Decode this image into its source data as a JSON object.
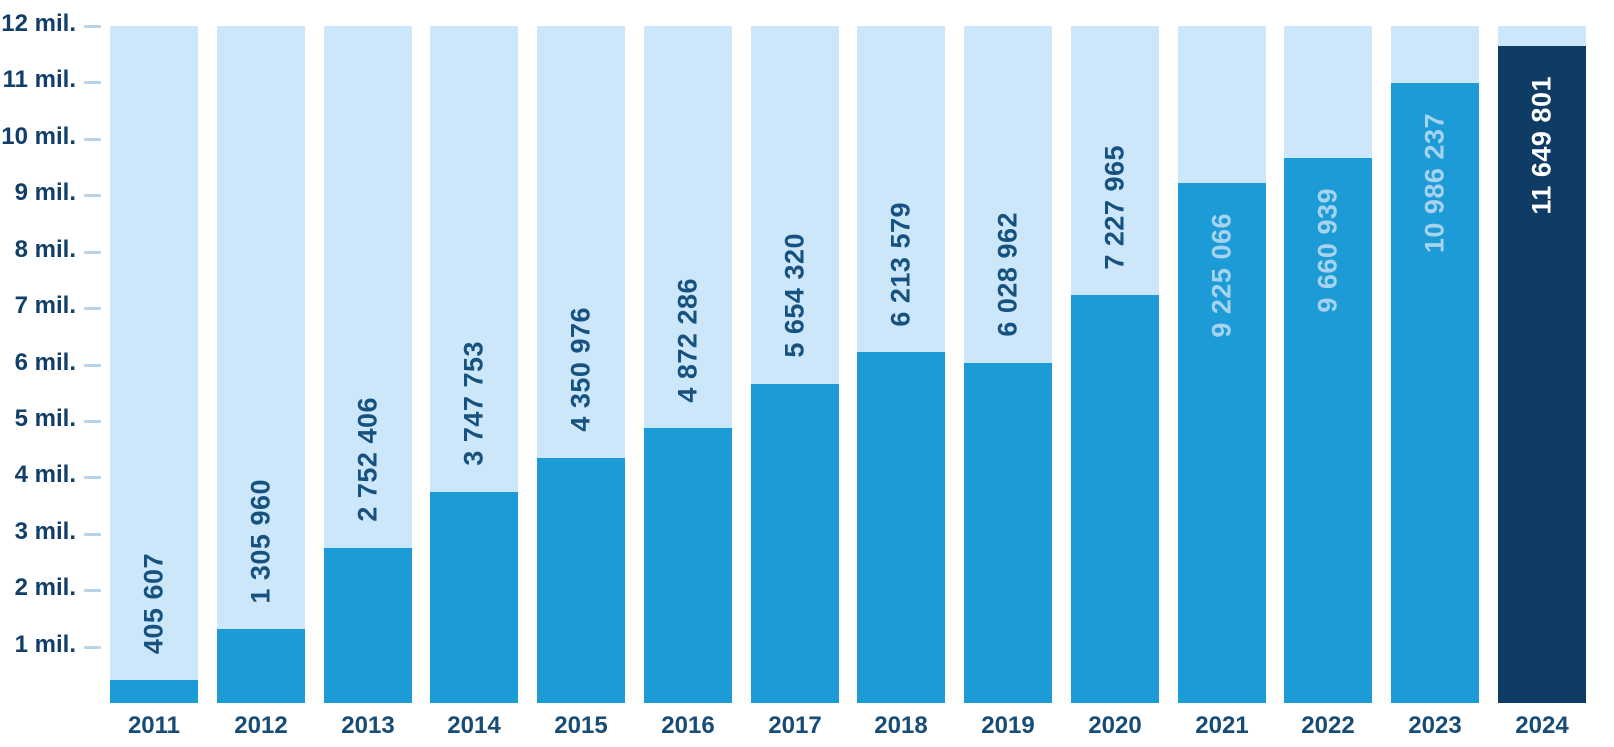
{
  "chart_data": {
    "type": "bar",
    "title": "",
    "xlabel": "",
    "ylabel": "",
    "ylim": [
      0,
      12000000
    ],
    "grid": false,
    "legend": null,
    "y_ticks": [
      "12 mil.",
      "11 mil.",
      "10 mil.",
      "9 mil.",
      "8 mil.",
      "7 mil.",
      "6 mil.",
      "5 mil.",
      "4 mil.",
      "3 mil.",
      "2 mil.",
      "1 mil."
    ],
    "categories": [
      "2011",
      "2012",
      "2013",
      "2014",
      "2015",
      "2016",
      "2017",
      "2018",
      "2019",
      "2020",
      "2021",
      "2022",
      "2023",
      "2024"
    ],
    "values": [
      405607,
      1305960,
      2752406,
      3747753,
      4350976,
      4872286,
      5654320,
      6213579,
      6028962,
      7227965,
      9225066,
      9660939,
      10986237,
      11649801
    ],
    "value_labels": [
      "405 607",
      "1 305 960",
      "2 752 406",
      "3 747 753",
      "4 350 976",
      "4 872 286",
      "5 654 320",
      "6 213 579",
      "6 028 962",
      "7 227 965",
      "9 225 066",
      "9 660 939",
      "10 986 237",
      "11 649 801"
    ],
    "label_styles": [
      "dark",
      "dark",
      "dark",
      "dark",
      "dark",
      "dark",
      "dark",
      "dark",
      "dark",
      "dark",
      "light",
      "light",
      "light",
      "white"
    ],
    "highlight_index": 13,
    "colors": {
      "bar_fill": "#1d9bd7",
      "bar_bg": "#cce7f9",
      "bar_highlight": "#0f3c64",
      "label_dark": "#17517f",
      "label_light": "#a6d3ee",
      "label_white": "#ffffff",
      "axis_text": "#123f69",
      "year_text": "#174c77",
      "tick": "#b9d4e6"
    }
  }
}
